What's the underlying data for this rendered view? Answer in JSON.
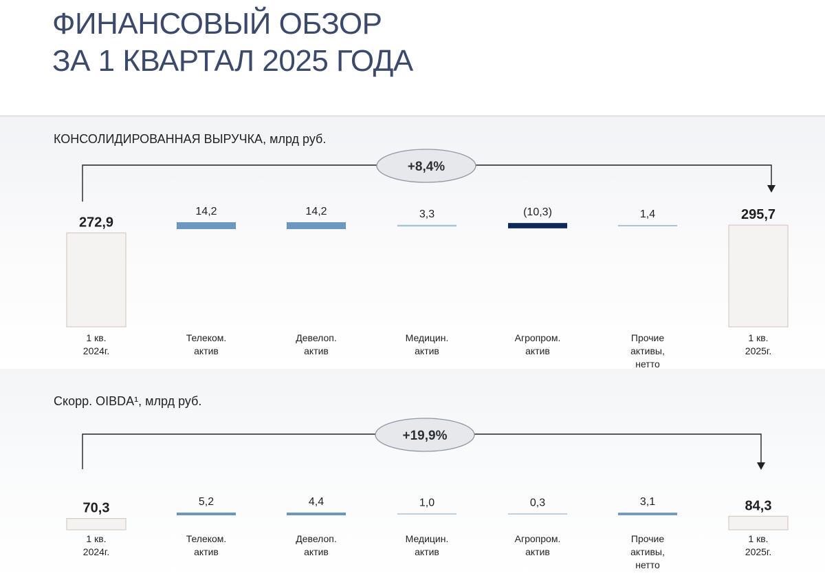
{
  "page": {
    "title_lines": [
      "ФИНАНСОВЫЙ ОБЗОР",
      "ЗА 1 КВАРТАЛ 2025 ГОДА"
    ]
  },
  "colors": {
    "title": "#3b4a6b",
    "total_fill": "#f5f3f2",
    "total_stroke": "#d9c9c3",
    "positive_bar": "#6c97c0",
    "negative_bar": "#0f2a5a",
    "small_bar": "#a7c3d6",
    "bracket": "#222222",
    "badge_fill": "#e6e8ec",
    "badge_stroke": "#8f96a3"
  },
  "chart_data": [
    {
      "type": "bar",
      "subtype": "waterfall",
      "title": "КОНСОЛИДИРОВАННАЯ ВЫРУЧКА, млрд руб.",
      "growth_label": "+8,4%",
      "categories": [
        [
          "1 кв.",
          "2024г."
        ],
        [
          "Телеком.",
          "актив"
        ],
        [
          "Девелоп.",
          "актив"
        ],
        [
          "Медицин.",
          "актив"
        ],
        [
          "Агропром.",
          "актив"
        ],
        [
          "Прочие",
          "активы,",
          "нетто"
        ],
        [
          "1 кв.",
          "2025г."
        ]
      ],
      "values": [
        272.9,
        14.2,
        14.2,
        3.3,
        -10.3,
        1.4,
        295.7
      ],
      "value_labels": [
        "272,9",
        "14,2",
        "14,2",
        "3,3",
        "(10,3)",
        "1,4",
        "295,7"
      ],
      "kinds": [
        "total",
        "delta",
        "delta",
        "delta",
        "delta",
        "delta",
        "total"
      ]
    },
    {
      "type": "bar",
      "subtype": "waterfall",
      "title": "Скорр. OIBDA¹, млрд руб.",
      "growth_label": "+19,9%",
      "categories": [
        [
          "1 кв.",
          "2024г."
        ],
        [
          "Телеком.",
          "актив"
        ],
        [
          "Девелоп.",
          "актив"
        ],
        [
          "Медицин.",
          "актив"
        ],
        [
          "Агропром.",
          "актив"
        ],
        [
          "Прочие",
          "активы,",
          "нетто"
        ],
        [
          "1 кв.",
          "2025г."
        ]
      ],
      "values": [
        70.3,
        5.2,
        4.4,
        1.0,
        0.3,
        3.1,
        84.3
      ],
      "value_labels": [
        "70,3",
        "5,2",
        "4,4",
        "1,0",
        "0,3",
        "3,1",
        "84,3"
      ],
      "kinds": [
        "total",
        "delta",
        "delta",
        "delta",
        "delta",
        "delta",
        "total"
      ]
    }
  ]
}
